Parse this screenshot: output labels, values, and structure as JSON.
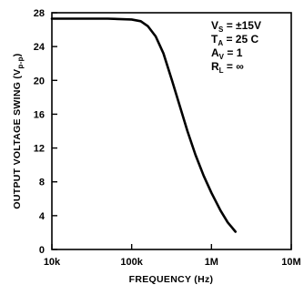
{
  "chart_data": {
    "type": "line",
    "title": "",
    "xlabel": "FREQUENCY (Hz)",
    "ylabel": "OUTPUT VOLTAGE SWING (V",
    "ylabel_sub": "p-p",
    "ylabel_close": ")",
    "x_scale": "log",
    "xlim": [
      10000,
      10000000
    ],
    "ylim": [
      0,
      28
    ],
    "x_ticks": [
      {
        "value": 10000,
        "label": "10k"
      },
      {
        "value": 100000,
        "label": "100k"
      },
      {
        "value": 1000000,
        "label": "1M"
      },
      {
        "value": 10000000,
        "label": "10M"
      }
    ],
    "y_ticks": [
      {
        "value": 0,
        "label": "0"
      },
      {
        "value": 4,
        "label": "4"
      },
      {
        "value": 8,
        "label": "8"
      },
      {
        "value": 12,
        "label": "12"
      },
      {
        "value": 16,
        "label": "16"
      },
      {
        "value": 20,
        "label": "20"
      },
      {
        "value": 24,
        "label": "24"
      },
      {
        "value": 28,
        "label": "28"
      }
    ],
    "grid": false,
    "series": [
      {
        "values": [
          {
            "x": 10000,
            "y": 27.3
          },
          {
            "x": 50000,
            "y": 27.3
          },
          {
            "x": 100000,
            "y": 27.2
          },
          {
            "x": 130000,
            "y": 27.0
          },
          {
            "x": 160000,
            "y": 26.4
          },
          {
            "x": 200000,
            "y": 25.2
          },
          {
            "x": 250000,
            "y": 23.2
          },
          {
            "x": 320000,
            "y": 20.0
          },
          {
            "x": 400000,
            "y": 17.0
          },
          {
            "x": 500000,
            "y": 14.0
          },
          {
            "x": 630000,
            "y": 11.2
          },
          {
            "x": 800000,
            "y": 8.7
          },
          {
            "x": 1000000,
            "y": 6.7
          },
          {
            "x": 1300000,
            "y": 4.6
          },
          {
            "x": 1600000,
            "y": 3.2
          },
          {
            "x": 2000000,
            "y": 2.1
          }
        ]
      }
    ],
    "annotations": [
      {
        "main": "V",
        "sub": "S",
        "rest": " = ±15V"
      },
      {
        "main": "T",
        "sub": "A",
        "rest": " = 25  C"
      },
      {
        "main": "A",
        "sub": "V",
        "rest": " = 1"
      },
      {
        "main": "R",
        "sub": "L",
        "rest": " = ∞"
      }
    ]
  }
}
